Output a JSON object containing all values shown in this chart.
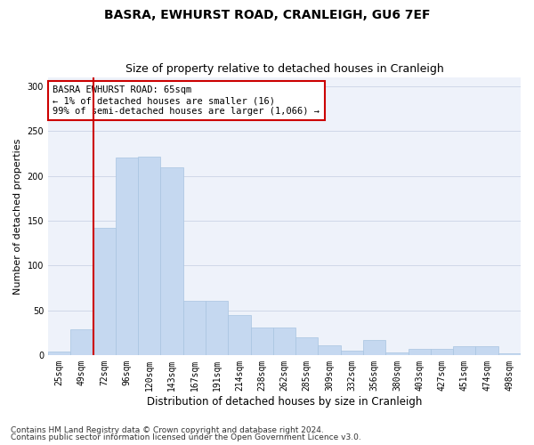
{
  "title": "BASRA, EWHURST ROAD, CRANLEIGH, GU6 7EF",
  "subtitle": "Size of property relative to detached houses in Cranleigh",
  "xlabel": "Distribution of detached houses by size in Cranleigh",
  "ylabel": "Number of detached properties",
  "categories": [
    "25sqm",
    "49sqm",
    "72sqm",
    "96sqm",
    "120sqm",
    "143sqm",
    "167sqm",
    "191sqm",
    "214sqm",
    "238sqm",
    "262sqm",
    "285sqm",
    "309sqm",
    "332sqm",
    "356sqm",
    "380sqm",
    "403sqm",
    "427sqm",
    "451sqm",
    "474sqm",
    "498sqm"
  ],
  "values": [
    4,
    29,
    142,
    221,
    222,
    210,
    60,
    60,
    45,
    31,
    31,
    20,
    11,
    5,
    17,
    3,
    7,
    7,
    10,
    10,
    2
  ],
  "bar_color": "#c5d8f0",
  "bar_edge_color": "#a8c4e0",
  "grid_color": "#d0d8e8",
  "background_color": "#eef2fa",
  "annotation_text": "BASRA EWHURST ROAD: 65sqm\n← 1% of detached houses are smaller (16)\n99% of semi-detached houses are larger (1,066) →",
  "annotation_box_color": "#ffffff",
  "annotation_box_edge_color": "#cc0000",
  "vline_color": "#cc0000",
  "ylim": [
    0,
    310
  ],
  "yticks": [
    0,
    50,
    100,
    150,
    200,
    250,
    300
  ],
  "footnote1": "Contains HM Land Registry data © Crown copyright and database right 2024.",
  "footnote2": "Contains public sector information licensed under the Open Government Licence v3.0.",
  "title_fontsize": 10,
  "subtitle_fontsize": 9,
  "xlabel_fontsize": 8.5,
  "ylabel_fontsize": 8,
  "tick_fontsize": 7,
  "annotation_fontsize": 7.5,
  "footnote_fontsize": 6.5
}
